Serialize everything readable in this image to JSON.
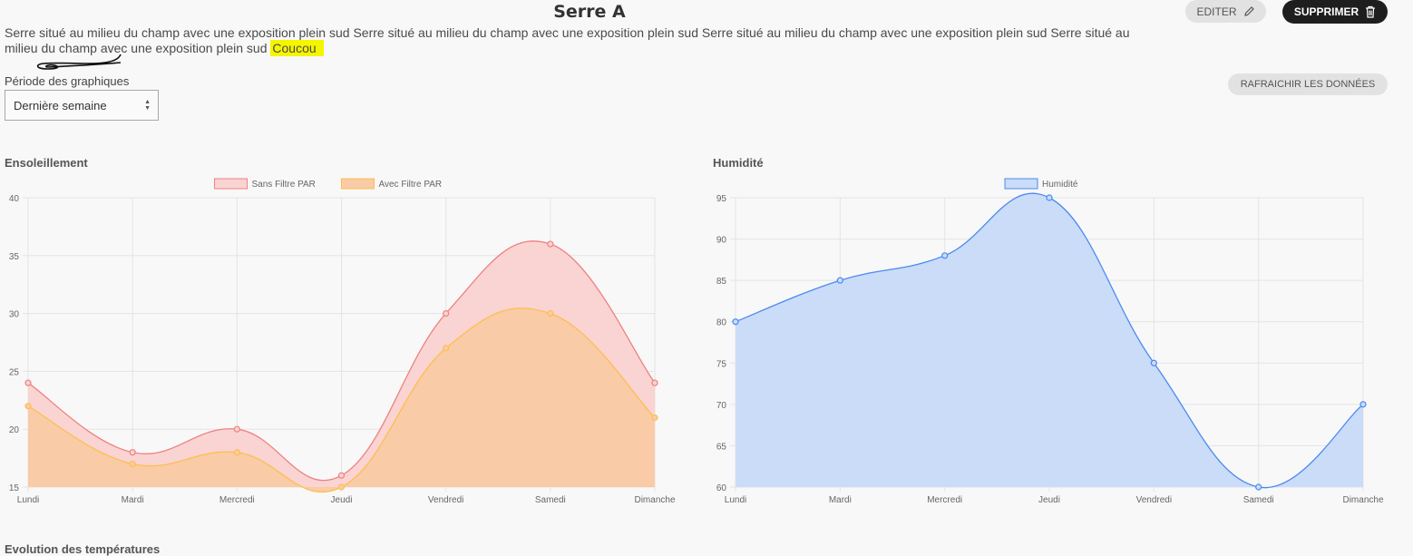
{
  "header": {
    "title": "Serre A",
    "description": "Serre situé au milieu du champ avec une exposition plein sud Serre situé au milieu du champ avec une exposition plein sud Serre situé au milieu du champ avec une exposition plein sud Serre situé au milieu du champ avec une exposition plein sud",
    "highlight": "Coucou",
    "edit_label": "EDITER",
    "delete_label": "SUPPRIMER",
    "edit_icon": "pencil-icon",
    "delete_icon": "trash-icon"
  },
  "controls": {
    "period_label": "Période des graphiques",
    "period_value": "Dernière semaine",
    "refresh_label": "RAFRAICHIR LES DONNÉES"
  },
  "chart_data": [
    {
      "type": "area",
      "title": "Ensoleillement",
      "categories": [
        "Lundi",
        "Mardi",
        "Mercredi",
        "Jeudi",
        "Vendredi",
        "Samedi",
        "Dimanche"
      ],
      "series": [
        {
          "name": "Sans Filtre PAR",
          "values": [
            24,
            18,
            20,
            16,
            30,
            36,
            24
          ],
          "color": "#f08080",
          "fill": "#f9d4d3"
        },
        {
          "name": "Avec Filtre PAR",
          "values": [
            22,
            17,
            18,
            15,
            27,
            30,
            21
          ],
          "color": "#fdbf50",
          "fill": "#f9cba6"
        }
      ],
      "ylim": [
        15,
        40
      ],
      "yticks": [
        15,
        20,
        25,
        30,
        35,
        40
      ],
      "grid": true,
      "legend": "top-center"
    },
    {
      "type": "area",
      "title": "Humidité",
      "categories": [
        "Lundi",
        "Mardi",
        "Mercredi",
        "Jeudi",
        "Vendredi",
        "Samedi",
        "Dimanche"
      ],
      "series": [
        {
          "name": "Humidité",
          "values": [
            80,
            85,
            88,
            95,
            75,
            60,
            70
          ],
          "color": "#4a8af0",
          "fill": "#cadcf7"
        }
      ],
      "ylim": [
        60,
        95
      ],
      "yticks": [
        60,
        65,
        70,
        75,
        80,
        85,
        90,
        95
      ],
      "grid": true,
      "legend": "top-center"
    }
  ],
  "next_section_title": "Evolution des températures"
}
